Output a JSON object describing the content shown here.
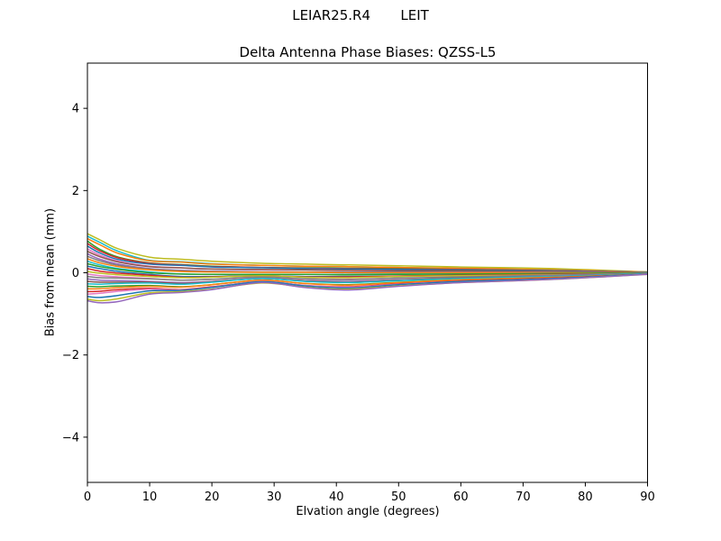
{
  "figure": {
    "suptitle": "LEIAR25.R4       LEIT",
    "background": "#ffffff"
  },
  "chart_data": {
    "type": "line",
    "title": "Delta Antenna Phase Biases: QZSS-L5",
    "xlabel": "Elvation angle (degrees)",
    "ylabel": "Bias from mean (mm)",
    "xlim": [
      0,
      90
    ],
    "ylim": [
      -5.1,
      5.1
    ],
    "x_ticks": [
      0,
      10,
      20,
      30,
      40,
      50,
      60,
      70,
      80,
      90
    ],
    "x_tick_labels": [
      "0",
      "10",
      "20",
      "30",
      "40",
      "50",
      "60",
      "70",
      "80",
      "90"
    ],
    "y_ticks": [
      4,
      2,
      0,
      -2,
      -4
    ],
    "y_tick_labels": [
      "4",
      "2",
      "0",
      "−2",
      "−4"
    ],
    "grid": false,
    "legend": "none",
    "axis_color": "#000000",
    "n_series": 28,
    "x": [
      0,
      2,
      5,
      10,
      15,
      20,
      28,
      35,
      42,
      50,
      60,
      75,
      90
    ],
    "series": [
      {
        "color": "#bcbd22",
        "values": [
          0.95,
          0.8,
          0.58,
          0.38,
          0.33,
          0.28,
          0.23,
          0.21,
          0.19,
          0.17,
          0.14,
          0.1,
          0.02
        ]
      },
      {
        "color": "#17becf",
        "values": [
          0.89,
          0.74,
          0.52,
          0.3,
          0.27,
          0.22,
          0.18,
          0.16,
          0.15,
          0.13,
          0.11,
          0.07,
          0.02
        ]
      },
      {
        "color": "#ff7f0e",
        "values": [
          0.83,
          0.68,
          0.47,
          0.29,
          0.26,
          0.21,
          0.18,
          0.16,
          0.15,
          0.13,
          0.11,
          0.07,
          0.02
        ]
      },
      {
        "color": "#2ca02c",
        "values": [
          0.77,
          0.57,
          0.38,
          0.24,
          0.2,
          0.16,
          0.13,
          0.12,
          0.11,
          0.1,
          0.08,
          0.05,
          0.01
        ]
      },
      {
        "color": "#d62728",
        "values": [
          0.71,
          0.53,
          0.36,
          0.23,
          0.19,
          0.15,
          0.13,
          0.11,
          0.1,
          0.09,
          0.08,
          0.05,
          0.01
        ]
      },
      {
        "color": "#1f77b4",
        "values": [
          0.65,
          0.48,
          0.32,
          0.21,
          0.18,
          0.14,
          0.12,
          0.1,
          0.09,
          0.08,
          0.07,
          0.05,
          0.01
        ]
      },
      {
        "color": "#e377c2",
        "values": [
          0.58,
          0.43,
          0.28,
          0.16,
          0.12,
          0.09,
          0.07,
          0.07,
          0.06,
          0.05,
          0.04,
          0.03,
          0.01
        ]
      },
      {
        "color": "#8c564b",
        "values": [
          0.52,
          0.39,
          0.26,
          0.15,
          0.12,
          0.09,
          0.08,
          0.07,
          0.06,
          0.05,
          0.05,
          0.03,
          0.01
        ]
      },
      {
        "color": "#9467bd",
        "values": [
          0.46,
          0.33,
          0.21,
          0.1,
          0.06,
          0.04,
          0.02,
          0.02,
          0.02,
          0.02,
          0.01,
          0.01,
          0.0
        ]
      },
      {
        "color": "#7f7f7f",
        "values": [
          0.4,
          0.29,
          0.18,
          0.09,
          0.05,
          0.03,
          0.02,
          0.02,
          0.01,
          0.01,
          0.01,
          0.01,
          0.0
        ]
      },
      {
        "color": "#ff7f0e",
        "values": [
          0.34,
          0.24,
          0.15,
          0.07,
          0.03,
          0.02,
          0.01,
          0.01,
          0.0,
          0.0,
          0.0,
          0.0,
          0.0
        ]
      },
      {
        "color": "#17becf",
        "values": [
          0.28,
          0.19,
          0.1,
          0.02,
          -0.03,
          -0.04,
          -0.04,
          -0.04,
          -0.04,
          -0.03,
          -0.03,
          -0.02,
          0.0
        ]
      },
      {
        "color": "#2ca02c",
        "values": [
          0.22,
          0.15,
          0.08,
          0.0,
          -0.03,
          -0.04,
          -0.04,
          -0.04,
          -0.05,
          -0.04,
          -0.03,
          -0.02,
          0.0
        ]
      },
      {
        "color": "#1f77b4",
        "values": [
          0.16,
          0.1,
          0.03,
          -0.04,
          -0.09,
          -0.09,
          -0.07,
          -0.09,
          -0.09,
          -0.08,
          -0.06,
          -0.04,
          -0.01
        ]
      },
      {
        "color": "#d62728",
        "values": [
          0.1,
          0.04,
          -0.01,
          -0.06,
          -0.11,
          -0.1,
          -0.07,
          -0.1,
          -0.1,
          -0.08,
          -0.06,
          -0.04,
          -0.01
        ]
      },
      {
        "color": "#bcbd22",
        "values": [
          0.03,
          -0.01,
          -0.05,
          -0.09,
          -0.12,
          -0.11,
          -0.07,
          -0.11,
          -0.12,
          -0.09,
          -0.07,
          -0.05,
          -0.01
        ]
      },
      {
        "color": "#e377c2",
        "values": [
          -0.03,
          -0.07,
          -0.1,
          -0.14,
          -0.18,
          -0.16,
          -0.11,
          -0.15,
          -0.16,
          -0.13,
          -0.1,
          -0.06,
          -0.02
        ]
      },
      {
        "color": "#7f7f7f",
        "values": [
          -0.09,
          -0.12,
          -0.13,
          -0.15,
          -0.18,
          -0.16,
          -0.1,
          -0.15,
          -0.17,
          -0.13,
          -0.1,
          -0.06,
          -0.01
        ]
      },
      {
        "color": "#9467bd",
        "values": [
          -0.15,
          -0.18,
          -0.19,
          -0.21,
          -0.24,
          -0.21,
          -0.14,
          -0.19,
          -0.21,
          -0.17,
          -0.13,
          -0.08,
          -0.02
        ]
      },
      {
        "color": "#8c564b",
        "values": [
          -0.21,
          -0.23,
          -0.23,
          -0.23,
          -0.26,
          -0.22,
          -0.14,
          -0.2,
          -0.23,
          -0.18,
          -0.13,
          -0.09,
          -0.02
        ]
      },
      {
        "color": "#17becf",
        "values": [
          -0.27,
          -0.28,
          -0.26,
          -0.25,
          -0.28,
          -0.23,
          -0.14,
          -0.21,
          -0.24,
          -0.19,
          -0.14,
          -0.09,
          -0.02
        ]
      },
      {
        "color": "#2ca02c",
        "values": [
          -0.33,
          -0.34,
          -0.32,
          -0.31,
          -0.34,
          -0.29,
          -0.18,
          -0.26,
          -0.29,
          -0.23,
          -0.17,
          -0.11,
          -0.03
        ]
      },
      {
        "color": "#ff7f0e",
        "values": [
          -0.39,
          -0.39,
          -0.36,
          -0.33,
          -0.35,
          -0.29,
          -0.18,
          -0.26,
          -0.3,
          -0.24,
          -0.17,
          -0.11,
          -0.03
        ]
      },
      {
        "color": "#d62728",
        "values": [
          -0.46,
          -0.45,
          -0.41,
          -0.38,
          -0.41,
          -0.34,
          -0.22,
          -0.31,
          -0.34,
          -0.27,
          -0.2,
          -0.13,
          -0.03
        ]
      },
      {
        "color": "#e377c2",
        "values": [
          -0.52,
          -0.5,
          -0.45,
          -0.4,
          -0.42,
          -0.35,
          -0.21,
          -0.31,
          -0.35,
          -0.28,
          -0.21,
          -0.14,
          -0.03
        ]
      },
      {
        "color": "#1f77b4",
        "values": [
          -0.58,
          -0.6,
          -0.55,
          -0.44,
          -0.43,
          -0.36,
          -0.22,
          -0.32,
          -0.37,
          -0.29,
          -0.21,
          -0.14,
          -0.03
        ]
      },
      {
        "color": "#bcbd22",
        "values": [
          -0.64,
          -0.68,
          -0.63,
          -0.49,
          -0.46,
          -0.4,
          -0.25,
          -0.35,
          -0.4,
          -0.32,
          -0.24,
          -0.16,
          -0.04
        ]
      },
      {
        "color": "#9467bd",
        "values": [
          -0.68,
          -0.73,
          -0.7,
          -0.52,
          -0.48,
          -0.41,
          -0.24,
          -0.36,
          -0.42,
          -0.33,
          -0.24,
          -0.16,
          -0.04
        ]
      }
    ]
  }
}
